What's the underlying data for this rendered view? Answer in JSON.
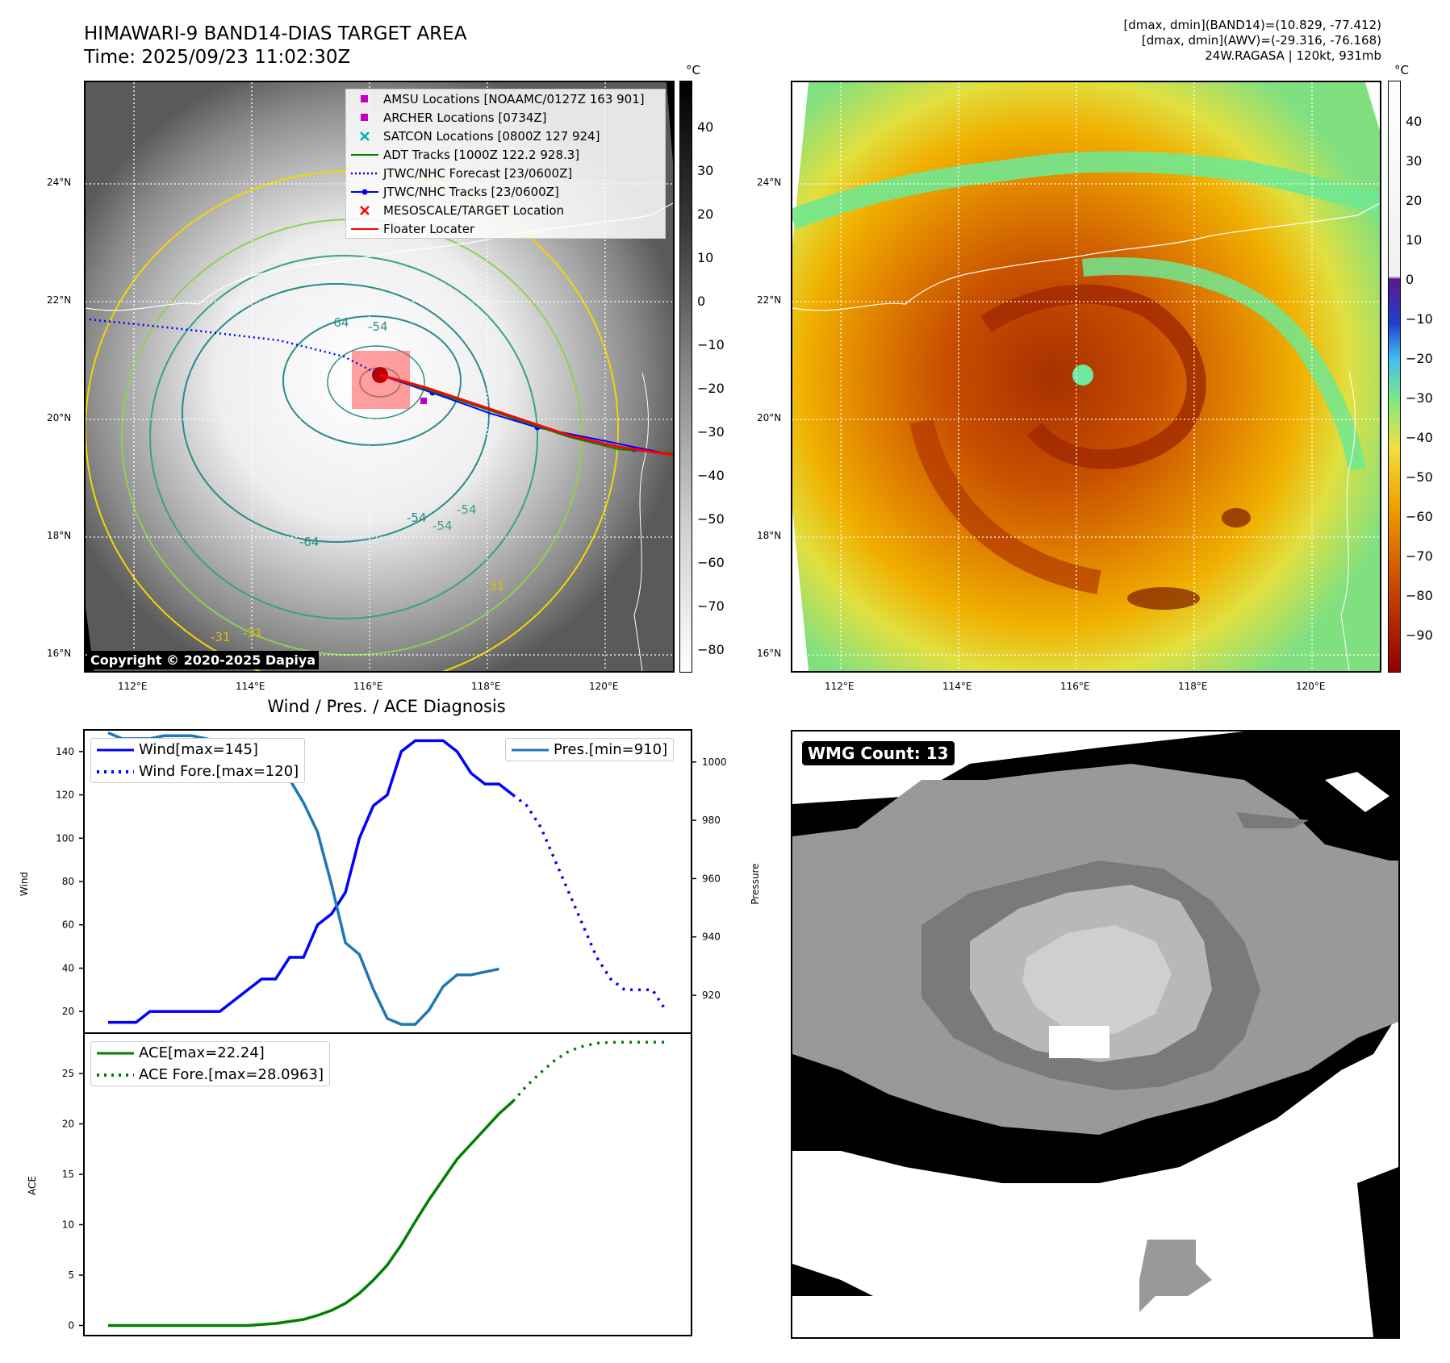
{
  "header": {
    "title_line1": "HIMAWARI-9 BAND14-DIAS TARGET AREA",
    "title_line2": "Time: 2025/09/23 11:02:30Z",
    "info_line1": "[dmax, dmin](BAND14)=(10.829, -77.412)",
    "info_line2": "[dmax, dmin](AWV)=(-29.316, -76.168)",
    "info_line3": "24W.RAGASA | 120kt, 931mb"
  },
  "ir_panel": {
    "unit": "°C",
    "colorbar_ticks": [
      "40",
      "30",
      "20",
      "10",
      "0",
      "−10",
      "−20",
      "−30",
      "−40",
      "−50",
      "−60",
      "−70",
      "−80"
    ],
    "lat_labels": [
      "24°N",
      "22°N",
      "20°N",
      "18°N",
      "16°N"
    ],
    "lon_labels": [
      "112°E",
      "114°E",
      "116°E",
      "118°E",
      "120°E"
    ],
    "contour_labels": [
      "-64",
      "-54",
      "-64",
      "-54",
      "-31",
      "-31",
      "-31",
      "-54",
      "-54"
    ],
    "copyright": "Copyright © 2020-2025 Dapiya",
    "legend": [
      {
        "label": "AMSU Locations [NOAAMC/0127Z 163 901]",
        "color": "#c000c0",
        "symbol": "square"
      },
      {
        "label": "ARCHER Locations [0734Z]",
        "color": "#c000c0",
        "symbol": "square"
      },
      {
        "label": "SATCON Locations [0800Z 127 924]",
        "color": "#00b0b0",
        "symbol": "x"
      },
      {
        "label": "ADT Tracks [1000Z 122.2 928.3]",
        "color": "#008000",
        "symbol": "line"
      },
      {
        "label": "JTWC/NHC Forecast [23/0600Z]",
        "color": "#0000ff",
        "symbol": "dotted"
      },
      {
        "label": "JTWC/NHC Tracks [23/0600Z]",
        "color": "#0000ff",
        "symbol": "line-dot"
      },
      {
        "label": "MESOSCALE/TARGET Location",
        "color": "#ff0000",
        "symbol": "x"
      },
      {
        "label": "Floater Locater",
        "color": "#ff0000",
        "symbol": "line"
      }
    ]
  },
  "awv_panel": {
    "unit": "°C",
    "colorbar_ticks": [
      "40",
      "30",
      "20",
      "10",
      "0",
      "−10",
      "−20",
      "−30",
      "−40",
      "−50",
      "−60",
      "−70",
      "−80",
      "−90"
    ],
    "lat_labels": [
      "24°N",
      "22°N",
      "20°N",
      "18°N",
      "16°N"
    ],
    "lon_labels": [
      "112°E",
      "114°E",
      "116°E",
      "118°E",
      "120°E"
    ]
  },
  "wmg_panel": {
    "badge": "WMG Count: 13"
  },
  "chart_data": [
    {
      "type": "line",
      "title": "Wind / Pres. / ACE Diagnosis",
      "ylabel": "Wind",
      "y2label": "Pressure",
      "ylim": [
        10,
        150
      ],
      "y2lim": [
        907,
        1011
      ],
      "y_ticks": [
        20,
        40,
        60,
        80,
        100,
        120,
        140
      ],
      "y2_ticks": [
        920,
        940,
        960,
        980,
        1000
      ],
      "series": [
        {
          "name": "Wind[max=145]",
          "color": "#0000ff",
          "style": "solid",
          "axis": "left",
          "x": [
            0,
            1,
            2,
            3,
            4,
            5,
            6,
            7,
            8,
            9,
            10,
            11,
            12,
            13,
            14,
            15,
            16,
            17,
            18,
            19,
            20,
            21,
            22,
            23,
            24,
            25,
            26,
            27,
            28,
            29
          ],
          "values": [
            15,
            15,
            15,
            20,
            20,
            20,
            20,
            20,
            20,
            25,
            30,
            35,
            35,
            45,
            45,
            60,
            65,
            75,
            100,
            115,
            120,
            140,
            145,
            145,
            145,
            140,
            130,
            125,
            125,
            120
          ]
        },
        {
          "name": "Wind Fore.[max=120]",
          "color": "#0000ff",
          "style": "dotted",
          "axis": "left",
          "x": [
            29,
            30,
            31,
            32,
            33,
            34,
            35,
            36,
            37,
            38,
            39,
            40
          ],
          "values": [
            120,
            115,
            105,
            90,
            75,
            60,
            45,
            35,
            30,
            30,
            30,
            20
          ]
        },
        {
          "name": "Pres.[min=910]",
          "color": "#1f77b4",
          "style": "solid",
          "axis": "right",
          "x": [
            0,
            1,
            2,
            3,
            4,
            5,
            6,
            7,
            8,
            9,
            10,
            11,
            12,
            13,
            14,
            15,
            16,
            17,
            18,
            19,
            20,
            21,
            22,
            23,
            24,
            25,
            26,
            27,
            28,
            29
          ],
          "values": [
            1010,
            1008,
            1008,
            1008,
            1009,
            1009,
            1009,
            1008,
            1007,
            1004,
            1002,
            1000,
            998,
            994,
            986,
            976,
            958,
            938,
            934,
            922,
            912,
            910,
            910,
            915,
            923,
            927,
            927,
            928,
            929,
            null
          ]
        }
      ]
    },
    {
      "type": "line",
      "ylabel": "ACE",
      "ylim": [
        -1,
        29
      ],
      "y_ticks": [
        0,
        5,
        10,
        15,
        20,
        25
      ],
      "series": [
        {
          "name": "ACE[max=22.24]",
          "color": "#008000",
          "style": "solid",
          "x": [
            0,
            1,
            2,
            3,
            4,
            5,
            6,
            7,
            8,
            9,
            10,
            11,
            12,
            13,
            14,
            15,
            16,
            17,
            18,
            19,
            20,
            21,
            22,
            23,
            24,
            25,
            26,
            27,
            28,
            29
          ],
          "values": [
            0,
            0,
            0,
            0,
            0,
            0,
            0,
            0,
            0,
            0,
            0,
            0.1,
            0.2,
            0.4,
            0.6,
            1.0,
            1.5,
            2.2,
            3.2,
            4.5,
            6.0,
            8.0,
            10.3,
            12.5,
            14.5,
            16.5,
            18.0,
            19.5,
            21.0,
            22.24
          ]
        },
        {
          "name": "ACE Fore.[max=28.0963]",
          "color": "#008000",
          "style": "dotted",
          "x": [
            29,
            30,
            31,
            32,
            33,
            34,
            35,
            36,
            37,
            38,
            39,
            40
          ],
          "values": [
            22.24,
            23.8,
            25.1,
            26.3,
            27.2,
            27.7,
            28.0,
            28.09,
            28.1,
            28.1,
            28.1,
            28.1
          ]
        }
      ]
    }
  ]
}
